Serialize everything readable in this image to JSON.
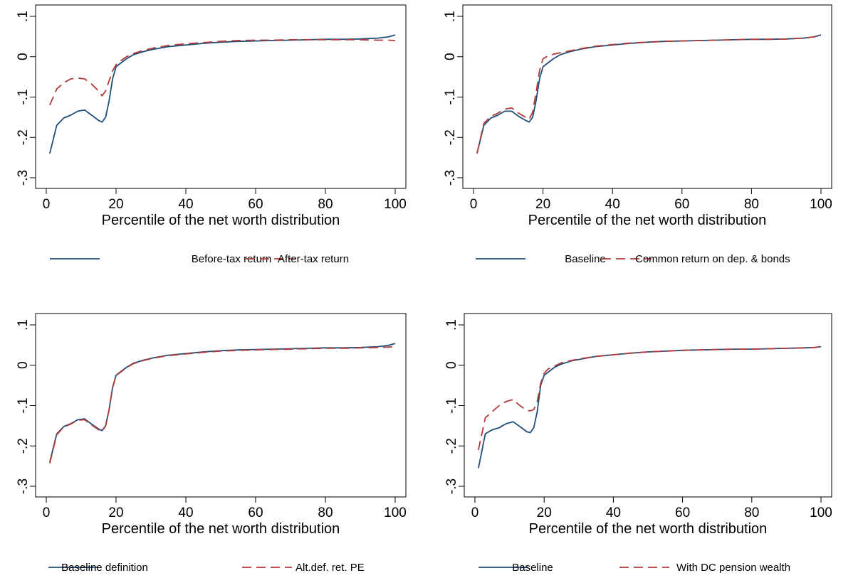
{
  "chart_data": [
    {
      "type": "line",
      "xlabel": "Percentile of the net worth distribution",
      "ylabel": "",
      "xlim": [
        0,
        100
      ],
      "ylim": [
        -0.3,
        0.1
      ],
      "xticks": [
        "0",
        "20",
        "40",
        "60",
        "80",
        "100"
      ],
      "yticks": [
        "-.3",
        "-.2",
        "-.1",
        "0",
        ".1"
      ],
      "x": [
        1,
        3,
        5,
        7,
        9,
        11,
        13,
        15,
        16,
        17,
        18,
        19,
        20,
        21,
        23,
        25,
        28,
        31,
        35,
        40,
        45,
        50,
        55,
        60,
        65,
        70,
        75,
        80,
        85,
        90,
        95,
        98,
        100
      ],
      "series": [
        {
          "name": "Before-tax return",
          "color": "#1f4e79",
          "dash": "solid",
          "values": [
            -0.24,
            -0.17,
            -0.152,
            -0.145,
            -0.135,
            -0.132,
            -0.145,
            -0.158,
            -0.162,
            -0.15,
            -0.11,
            -0.055,
            -0.025,
            -0.018,
            -0.005,
            0.005,
            0.013,
            0.019,
            0.025,
            0.029,
            0.033,
            0.036,
            0.038,
            0.039,
            0.04,
            0.041,
            0.042,
            0.043,
            0.043,
            0.044,
            0.046,
            0.049,
            0.054
          ]
        },
        {
          "name": "After-tax return",
          "color": "#b03a3a",
          "dash": "dashed",
          "values": [
            -0.12,
            -0.08,
            -0.065,
            -0.055,
            -0.053,
            -0.055,
            -0.068,
            -0.085,
            -0.097,
            -0.085,
            -0.06,
            -0.035,
            -0.02,
            -0.012,
            0.0,
            0.008,
            0.016,
            0.022,
            0.028,
            0.032,
            0.035,
            0.038,
            0.04,
            0.041,
            0.041,
            0.042,
            0.042,
            0.042,
            0.042,
            0.042,
            0.041,
            0.041,
            0.04
          ]
        }
      ]
    },
    {
      "type": "line",
      "xlabel": "Percentile of the net worth distribution",
      "ylabel": "",
      "xlim": [
        0,
        100
      ],
      "ylim": [
        -0.3,
        0.1
      ],
      "xticks": [
        "0",
        "20",
        "40",
        "60",
        "80",
        "100"
      ],
      "yticks": [
        "-.3",
        "-.2",
        "-.1",
        "0",
        ".1"
      ],
      "x": [
        1,
        3,
        5,
        7,
        9,
        11,
        13,
        15,
        16,
        17,
        18,
        19,
        20,
        21,
        23,
        25,
        28,
        31,
        35,
        40,
        45,
        50,
        55,
        60,
        65,
        70,
        75,
        80,
        85,
        90,
        95,
        98,
        100
      ],
      "series": [
        {
          "name": "Baseline",
          "color": "#1f4e79",
          "dash": "solid",
          "values": [
            -0.24,
            -0.17,
            -0.152,
            -0.145,
            -0.135,
            -0.135,
            -0.148,
            -0.158,
            -0.162,
            -0.15,
            -0.11,
            -0.055,
            -0.025,
            -0.018,
            -0.005,
            0.005,
            0.013,
            0.019,
            0.025,
            0.029,
            0.033,
            0.036,
            0.038,
            0.039,
            0.04,
            0.041,
            0.042,
            0.043,
            0.043,
            0.044,
            0.046,
            0.049,
            0.054
          ]
        },
        {
          "name": "Common return on dep. & bonds",
          "color": "#b03a3a",
          "dash": "dashed",
          "values": [
            -0.24,
            -0.165,
            -0.148,
            -0.14,
            -0.13,
            -0.127,
            -0.14,
            -0.15,
            -0.155,
            -0.138,
            -0.09,
            -0.035,
            -0.005,
            0.0,
            0.006,
            0.01,
            0.015,
            0.02,
            0.026,
            0.03,
            0.034,
            0.036,
            0.038,
            0.039,
            0.04,
            0.041,
            0.042,
            0.043,
            0.043,
            0.044,
            0.046,
            0.049,
            0.054
          ]
        }
      ]
    },
    {
      "type": "line",
      "xlabel": "Percentile of the net worth distribution",
      "ylabel": "",
      "xlim": [
        0,
        100
      ],
      "ylim": [
        -0.3,
        0.1
      ],
      "xticks": [
        "0",
        "20",
        "40",
        "60",
        "80",
        "100"
      ],
      "yticks": [
        "-.3",
        "-.2",
        "-.1",
        "0",
        ".1"
      ],
      "x": [
        1,
        3,
        5,
        7,
        9,
        11,
        13,
        15,
        16,
        17,
        18,
        19,
        20,
        21,
        23,
        25,
        28,
        31,
        35,
        40,
        45,
        50,
        55,
        60,
        65,
        70,
        75,
        80,
        85,
        90,
        95,
        98,
        100
      ],
      "series": [
        {
          "name": "Baseline definition",
          "color": "#1f4e79",
          "dash": "solid",
          "values": [
            -0.24,
            -0.17,
            -0.152,
            -0.145,
            -0.135,
            -0.133,
            -0.146,
            -0.158,
            -0.162,
            -0.15,
            -0.11,
            -0.055,
            -0.025,
            -0.018,
            -0.005,
            0.005,
            0.013,
            0.019,
            0.025,
            0.029,
            0.033,
            0.036,
            0.038,
            0.039,
            0.04,
            0.041,
            0.042,
            0.043,
            0.043,
            0.044,
            0.046,
            0.049,
            0.054
          ]
        },
        {
          "name": "Alt.def. ret. PE",
          "color": "#b03a3a",
          "dash": "dashed",
          "values": [
            -0.243,
            -0.172,
            -0.153,
            -0.146,
            -0.136,
            -0.135,
            -0.148,
            -0.16,
            -0.163,
            -0.151,
            -0.111,
            -0.056,
            -0.026,
            -0.019,
            -0.006,
            0.004,
            0.012,
            0.018,
            0.024,
            0.028,
            0.032,
            0.035,
            0.037,
            0.038,
            0.039,
            0.04,
            0.041,
            0.042,
            0.042,
            0.043,
            0.044,
            0.045,
            0.046
          ]
        }
      ]
    },
    {
      "type": "line",
      "xlabel": "Percentile of the net worth distribution",
      "ylabel": "",
      "xlim": [
        0,
        100
      ],
      "ylim": [
        -0.3,
        0.1
      ],
      "xticks": [
        "0",
        "20",
        "40",
        "60",
        "80",
        "100"
      ],
      "yticks": [
        "-.3",
        "-.2",
        "-.1",
        "0",
        ".1"
      ],
      "x": [
        1,
        3,
        5,
        7,
        9,
        11,
        13,
        15,
        16,
        17,
        18,
        19,
        20,
        21,
        23,
        25,
        28,
        31,
        35,
        40,
        45,
        50,
        55,
        60,
        65,
        70,
        75,
        80,
        85,
        90,
        95,
        98,
        100
      ],
      "series": [
        {
          "name": "Baseline",
          "color": "#1f4e79",
          "dash": "solid",
          "values": [
            -0.255,
            -0.17,
            -0.16,
            -0.155,
            -0.145,
            -0.14,
            -0.152,
            -0.165,
            -0.167,
            -0.155,
            -0.115,
            -0.05,
            -0.025,
            -0.018,
            -0.005,
            0.003,
            0.011,
            0.016,
            0.022,
            0.026,
            0.03,
            0.033,
            0.035,
            0.037,
            0.038,
            0.039,
            0.04,
            0.04,
            0.041,
            0.042,
            0.043,
            0.044,
            0.046
          ]
        },
        {
          "name": "With DC pension wealth",
          "color": "#b03a3a",
          "dash": "dashed",
          "values": [
            -0.21,
            -0.13,
            -0.115,
            -0.1,
            -0.09,
            -0.085,
            -0.1,
            -0.112,
            -0.113,
            -0.11,
            -0.09,
            -0.045,
            -0.02,
            -0.01,
            -0.002,
            0.006,
            0.012,
            0.017,
            0.022,
            0.026,
            0.03,
            0.033,
            0.035,
            0.037,
            0.038,
            0.039,
            0.04,
            0.04,
            0.041,
            0.042,
            0.043,
            0.044,
            0.046
          ]
        }
      ]
    }
  ]
}
